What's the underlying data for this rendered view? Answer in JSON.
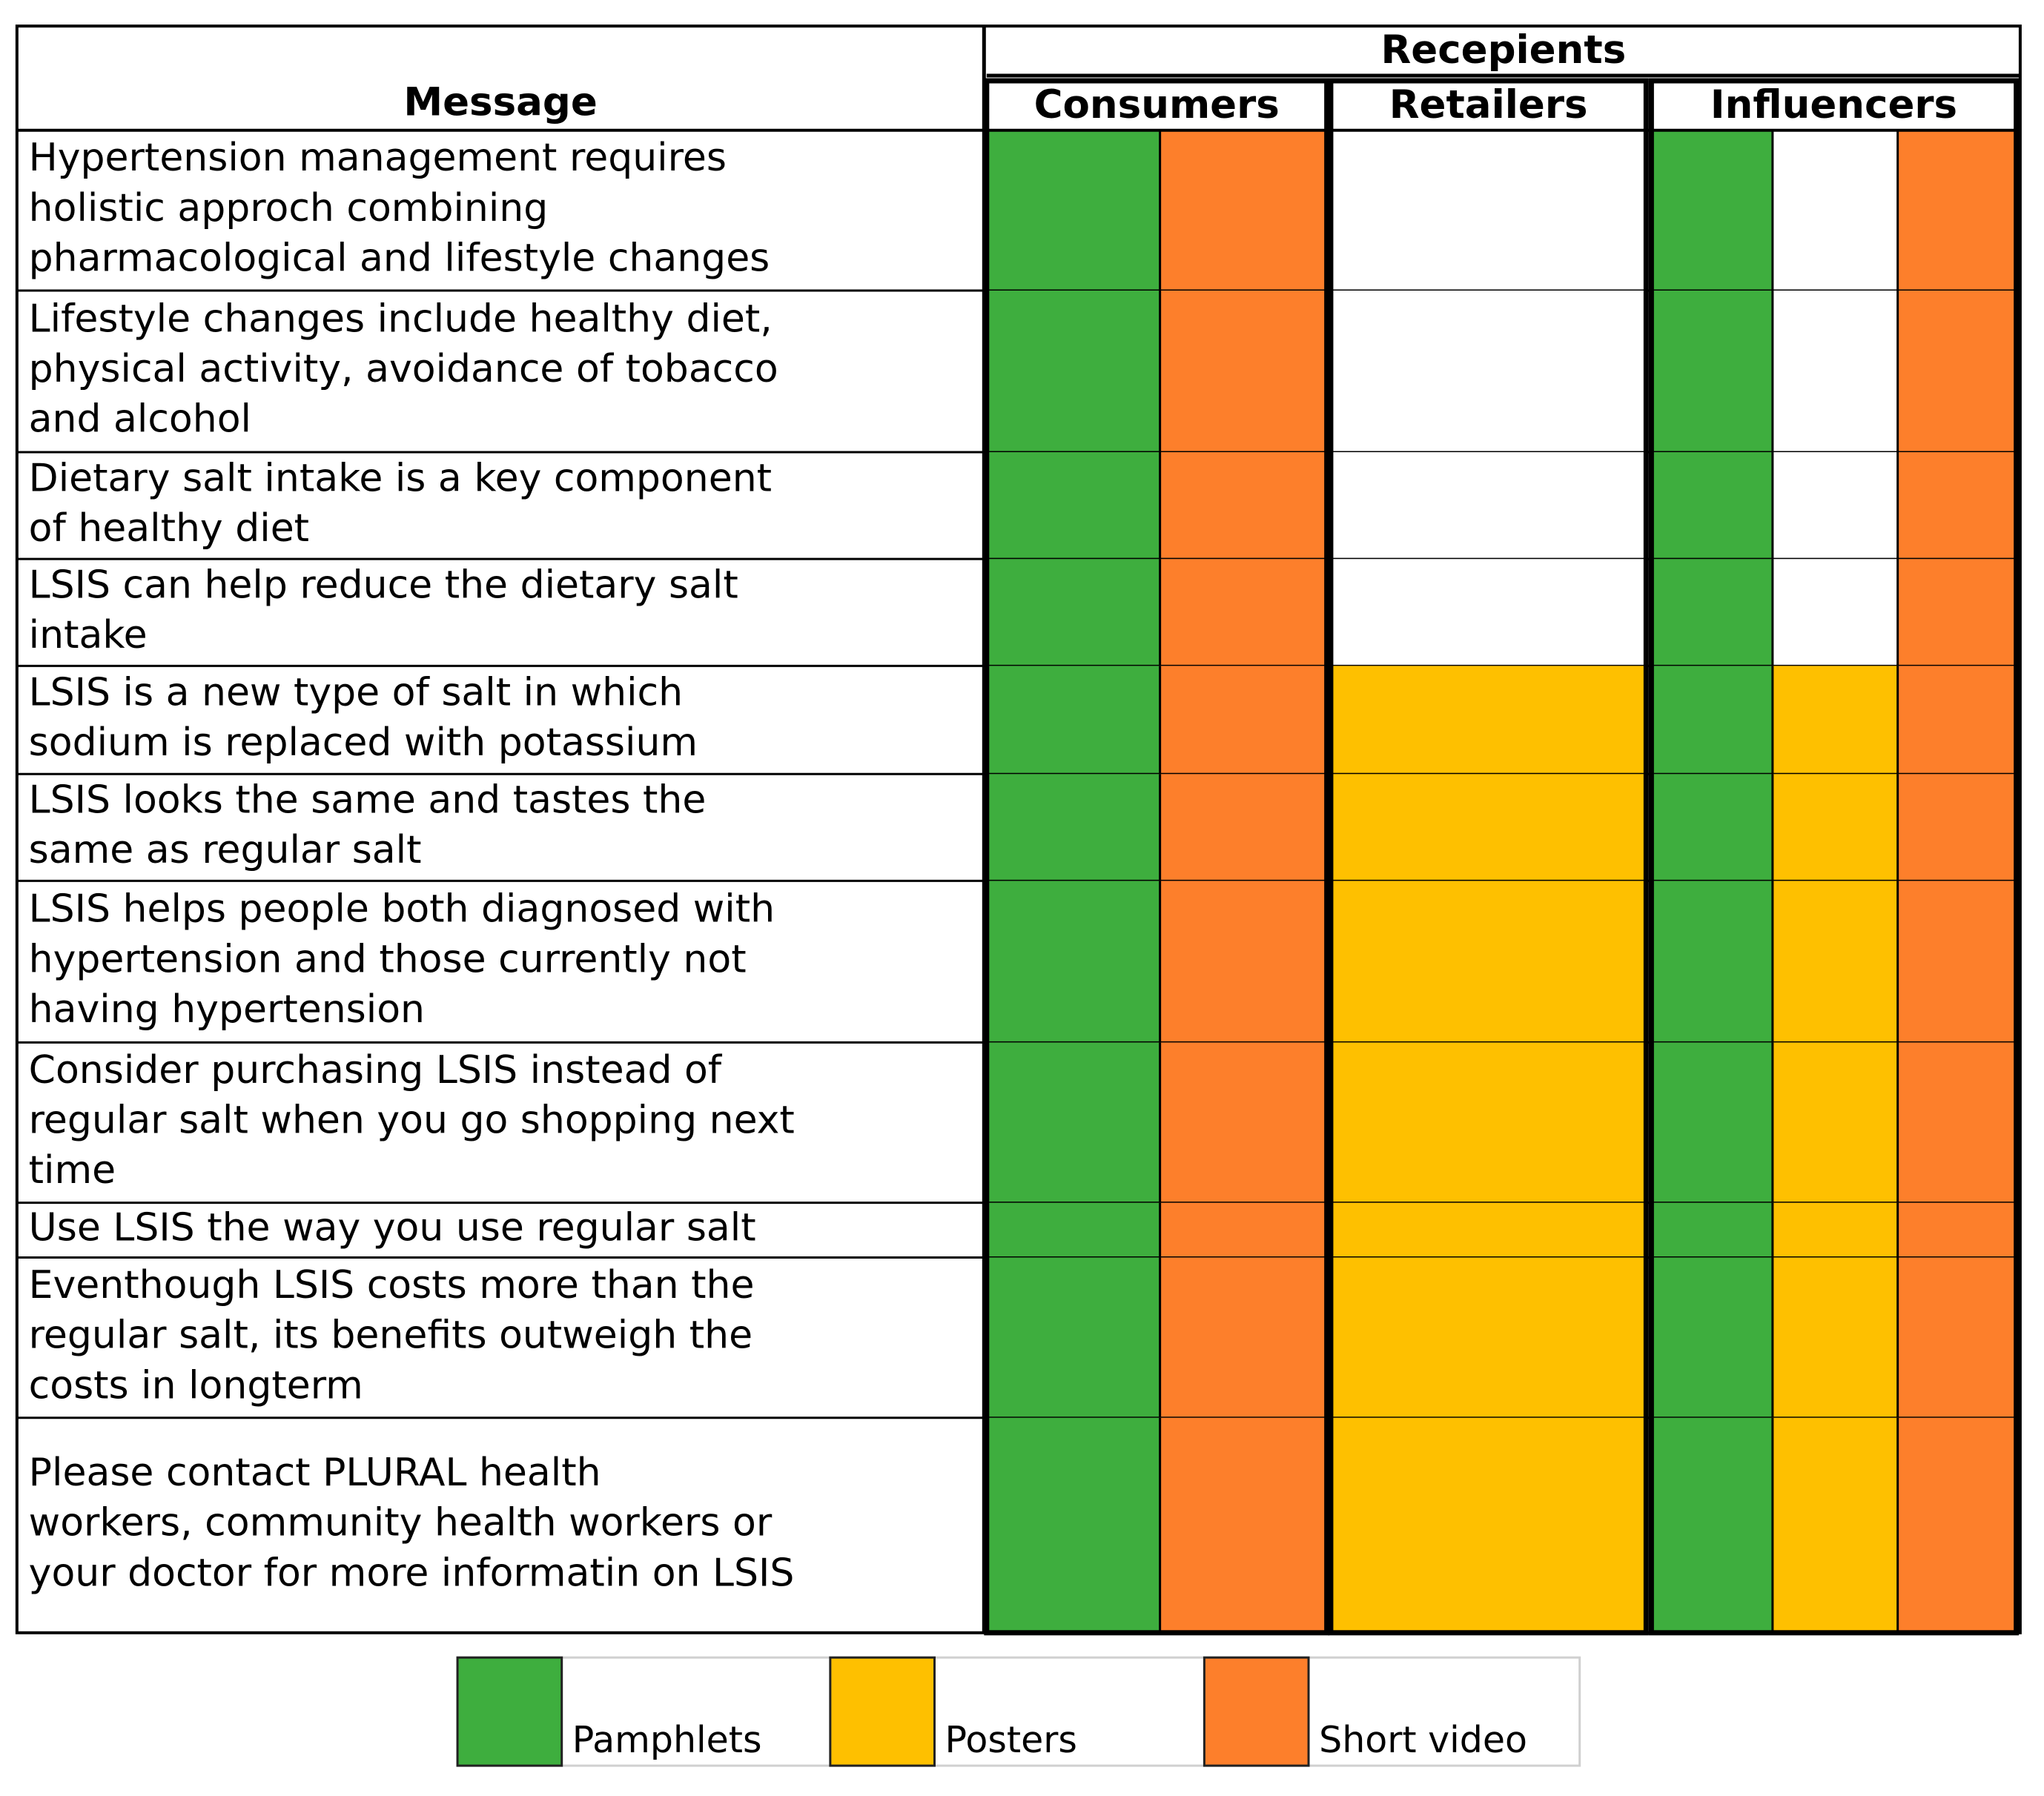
{
  "header": {
    "message": "Message",
    "recipients": "Recepients"
  },
  "legend": [
    {
      "label": "Pamphlets",
      "color": "#3eae3e"
    },
    {
      "label": "Posters",
      "color": "#fec000"
    },
    {
      "label": "Short video",
      "color": "#fd7f2b"
    }
  ],
  "groups": [
    {
      "name": "Consumers",
      "channels": [
        0,
        2
      ]
    },
    {
      "name": "Retailers",
      "channels": [
        1
      ]
    },
    {
      "name": "Influencers",
      "channels": [
        0,
        1,
        2
      ]
    }
  ],
  "rows": [
    {
      "message": [
        "Hypertension management requires",
        "holistic approch combining",
        "pharmacological and lifestyle changes"
      ],
      "cells": [
        [
          true,
          true
        ],
        [
          false
        ],
        [
          true,
          false,
          true
        ]
      ]
    },
    {
      "message": [
        "Lifestyle changes include healthy diet,",
        "physical activity, avoidance of tobacco",
        "and alcohol"
      ],
      "cells": [
        [
          true,
          true
        ],
        [
          false
        ],
        [
          true,
          false,
          true
        ]
      ]
    },
    {
      "message": [
        "Dietary salt intake is a key component",
        "of healthy diet"
      ],
      "cells": [
        [
          true,
          true
        ],
        [
          false
        ],
        [
          true,
          false,
          true
        ]
      ]
    },
    {
      "message": [
        "LSIS can help reduce the dietary salt",
        "intake"
      ],
      "cells": [
        [
          true,
          true
        ],
        [
          false
        ],
        [
          true,
          false,
          true
        ]
      ]
    },
    {
      "message": [
        "LSIS is a new type of salt in which",
        "sodium is replaced with potassium"
      ],
      "cells": [
        [
          true,
          true
        ],
        [
          true
        ],
        [
          true,
          true,
          true
        ]
      ]
    },
    {
      "message": [
        "LSIS looks the same and tastes the",
        "same as regular salt"
      ],
      "cells": [
        [
          true,
          true
        ],
        [
          true
        ],
        [
          true,
          true,
          true
        ]
      ]
    },
    {
      "message": [
        "LSIS helps people both  diagnosed with",
        "hypertension and those currently not",
        "having hypertension"
      ],
      "cells": [
        [
          true,
          true
        ],
        [
          true
        ],
        [
          true,
          true,
          true
        ]
      ]
    },
    {
      "message": [
        "Consider purchasing LSIS instead of",
        "regular salt when you go shopping next",
        "time"
      ],
      "cells": [
        [
          true,
          true
        ],
        [
          true
        ],
        [
          true,
          true,
          true
        ]
      ]
    },
    {
      "message": [
        "Use LSIS the way you use regular salt"
      ],
      "cells": [
        [
          true,
          true
        ],
        [
          true
        ],
        [
          true,
          true,
          true
        ]
      ]
    },
    {
      "message": [
        "Eventhough LSIS costs more than the",
        "regular salt, its benefits outweigh the",
        "costs in longterm"
      ],
      "cells": [
        [
          true,
          true
        ],
        [
          true
        ],
        [
          true,
          true,
          true
        ]
      ]
    },
    {
      "message": [
        "Please contact PLURAL health",
        "workers, community health workers or",
        "your doctor for more informatin on LSIS"
      ],
      "cells": [
        [
          true,
          true
        ],
        [
          true
        ],
        [
          true,
          true,
          true
        ]
      ]
    }
  ]
}
